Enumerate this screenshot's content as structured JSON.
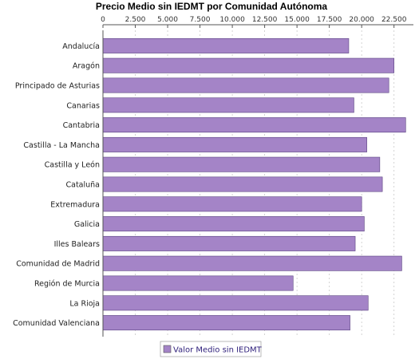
{
  "chart_data": {
    "type": "bar",
    "orientation": "horizontal",
    "title": "Precio Medio sin IEDMT por Comunidad Autónoma",
    "categories": [
      "Andalucía",
      "Aragón",
      "Principado de Asturias",
      "Canarias",
      "Cantabria",
      "Castilla - La Mancha",
      "Castilla y León",
      "Cataluña",
      "Extremadura",
      "Galicia",
      "Illes Balears",
      "Comunidad de Madrid",
      "Región de Murcia",
      "La Rioja",
      "Comunidad Valenciana"
    ],
    "series": [
      {
        "name": "Valor Medio sin IEDMT",
        "color": "#a484c7",
        "values": [
          19000,
          22500,
          22100,
          19400,
          23400,
          20400,
          21400,
          21600,
          20000,
          20200,
          19500,
          23100,
          14700,
          20500,
          19100
        ]
      }
    ],
    "xlim": [
      0,
      24000
    ],
    "x_ticks": [
      "0",
      "2.500",
      "5.000",
      "7.500",
      "10.000",
      "12.500",
      "15.000",
      "17.500",
      "20.000",
      "22.500"
    ],
    "x_tick_values": [
      0,
      2500,
      5000,
      7500,
      10000,
      12500,
      15000,
      17500,
      20000,
      22500
    ],
    "x_axis_position": "top",
    "grid": true,
    "legend_position": "bottom-center"
  }
}
